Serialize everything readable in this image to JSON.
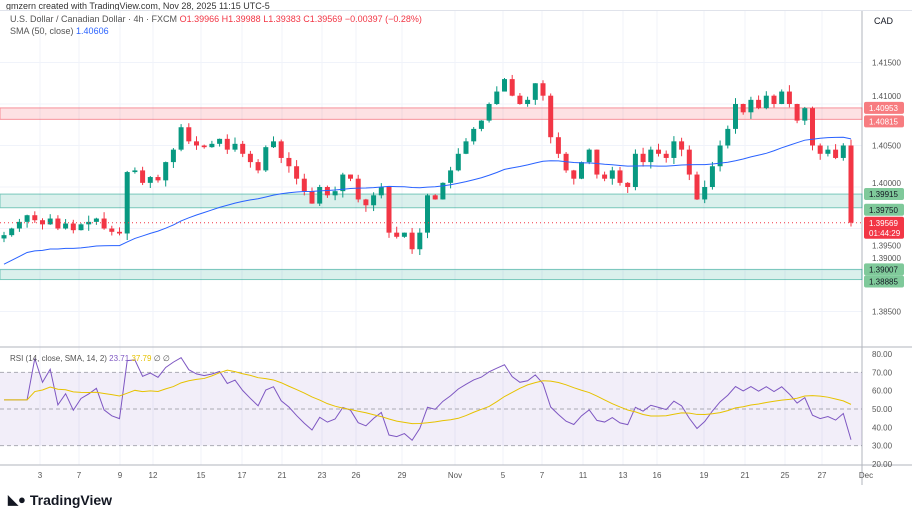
{
  "credit": "gmzern created with TradingView.com, Nov 28, 2025 11:15 UTC-5",
  "header": {
    "symbol": "U.S. Dollar / Canadian Dollar · 4h · FXCM",
    "open": "O1.39966",
    "high": "H1.39988",
    "low": "L1.39383",
    "close": "C1.39569",
    "change": "−0.00397 (−0.28%)",
    "sma_label": "SMA (50, close)",
    "sma_value": "1.40606",
    "currency": "CAD"
  },
  "rsi_legend": {
    "label": "RSI (14, close, SMA, 14, 2)",
    "rsi": "23.71",
    "sma": "37.79",
    "extra": "∅ ∅"
  },
  "logo": "TradingView",
  "colors": {
    "up": "#089981",
    "down": "#f23645",
    "sma": "#2962ff",
    "rsi": "#7e57c2",
    "rsi_ma": "#e6c200",
    "resistance": "#f23645",
    "support": "#089981"
  },
  "chart_data": {
    "type": "candlestick",
    "price_ticks": [
      "1.41500",
      "1.41000",
      "1.40500",
      "1.40000",
      "1.39500",
      "1.39000",
      "1.38500"
    ],
    "price_range": [
      1.383,
      1.418
    ],
    "x_ticks": [
      "3",
      "7",
      "9",
      "12",
      "15",
      "17",
      "21",
      "23",
      "26",
      "29",
      "Nov",
      "5",
      "7",
      "11",
      "13",
      "16",
      "19",
      "21",
      "25",
      "27",
      "Dec"
    ],
    "closes": [
      1.3942,
      1.395,
      1.3958,
      1.3966,
      1.396,
      1.3955,
      1.3962,
      1.395,
      1.3956,
      1.3948,
      1.3955,
      1.3958,
      1.3962,
      1.395,
      1.3946,
      1.3944,
      1.4018,
      1.402,
      1.4005,
      1.4012,
      1.4008,
      1.403,
      1.4045,
      1.4072,
      1.4055,
      1.405,
      1.4048,
      1.4052,
      1.4058,
      1.4045,
      1.4052,
      1.404,
      1.403,
      1.402,
      1.4048,
      1.4055,
      1.4035,
      1.4025,
      1.401,
      1.3995,
      1.398,
      1.4,
      1.399,
      1.3995,
      1.4015,
      1.401,
      1.3985,
      1.3978,
      1.399,
      1.4,
      1.3945,
      1.394,
      1.3945,
      1.3925,
      1.3945,
      1.399,
      1.3985,
      1.4005,
      1.402,
      1.404,
      1.4055,
      1.407,
      1.408,
      1.41,
      1.4115,
      1.413,
      1.411,
      1.41,
      1.4105,
      1.4125,
      1.411,
      1.406,
      1.404,
      1.402,
      1.401,
      1.403,
      1.4045,
      1.4015,
      1.401,
      1.402,
      1.4005,
      1.4,
      1.404,
      1.403,
      1.4045,
      1.404,
      1.4035,
      1.4055,
      1.4045,
      1.4015,
      1.3985,
      1.4,
      1.4025,
      1.405,
      1.407,
      1.41,
      1.409,
      1.4105,
      1.4095,
      1.411,
      1.41,
      1.4115,
      1.41,
      1.408,
      1.4095,
      1.405,
      1.404,
      1.4045,
      1.4035,
      1.405,
      1.3957
    ],
    "zones": [
      {
        "top": 1.40953,
        "bottom": 1.40815,
        "top_label": "1.40953",
        "bottom_label": "1.40815",
        "type": "resistance"
      },
      {
        "top": 1.39915,
        "bottom": 1.3975,
        "top_label": "1.39915",
        "bottom_label": "1.39750",
        "type": "support"
      },
      {
        "top": 1.39007,
        "bottom": 1.38885,
        "top_label": "1.39007",
        "bottom_label": "1.38885",
        "type": "support"
      }
    ],
    "last_price": {
      "value": 1.39569,
      "label": "1.39569",
      "countdown": "01:44:29"
    },
    "rsi_ticks": [
      "80.00",
      "70.00",
      "60.00",
      "50.00",
      "40.00",
      "30.00",
      "20.00"
    ],
    "rsi_range": [
      20,
      80
    ],
    "rsi_bands": [
      30,
      70
    ]
  }
}
